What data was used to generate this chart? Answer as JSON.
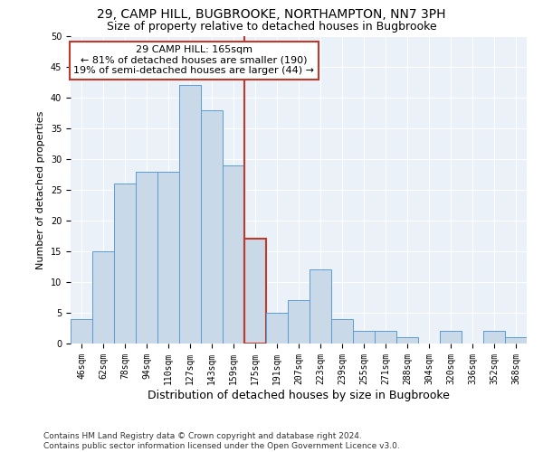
{
  "title": "29, CAMP HILL, BUGBROOKE, NORTHAMPTON, NN7 3PH",
  "subtitle": "Size of property relative to detached houses in Bugbrooke",
  "xlabel": "Distribution of detached houses by size in Bugbrooke",
  "ylabel": "Number of detached properties",
  "bin_labels": [
    "46sqm",
    "62sqm",
    "78sqm",
    "94sqm",
    "110sqm",
    "127sqm",
    "143sqm",
    "159sqm",
    "175sqm",
    "191sqm",
    "207sqm",
    "223sqm",
    "239sqm",
    "255sqm",
    "271sqm",
    "288sqm",
    "304sqm",
    "320sqm",
    "336sqm",
    "352sqm",
    "368sqm"
  ],
  "bar_values": [
    4,
    15,
    26,
    28,
    28,
    42,
    38,
    29,
    17,
    5,
    7,
    12,
    4,
    2,
    2,
    1,
    0,
    2,
    0,
    2,
    1
  ],
  "bar_color": "#c9d9e8",
  "bar_edge_color": "#5b9bd5",
  "highlight_bar_index": 8,
  "highlight_bar_edge_color": "#c0392b",
  "vline_color": "#c0392b",
  "annotation_text": "29 CAMP HILL: 165sqm\n← 81% of detached houses are smaller (190)\n19% of semi-detached houses are larger (44) →",
  "annotation_box_color": "white",
  "annotation_box_edge_color": "#c0392b",
  "ylim": [
    0,
    50
  ],
  "yticks": [
    0,
    5,
    10,
    15,
    20,
    25,
    30,
    35,
    40,
    45,
    50
  ],
  "bg_color": "#eaf1f8",
  "grid_color": "white",
  "footnote": "Contains HM Land Registry data © Crown copyright and database right 2024.\nContains public sector information licensed under the Open Government Licence v3.0.",
  "title_fontsize": 10,
  "subtitle_fontsize": 9,
  "xlabel_fontsize": 9,
  "ylabel_fontsize": 8,
  "annotation_fontsize": 8,
  "footnote_fontsize": 6.5,
  "tick_fontsize": 7
}
